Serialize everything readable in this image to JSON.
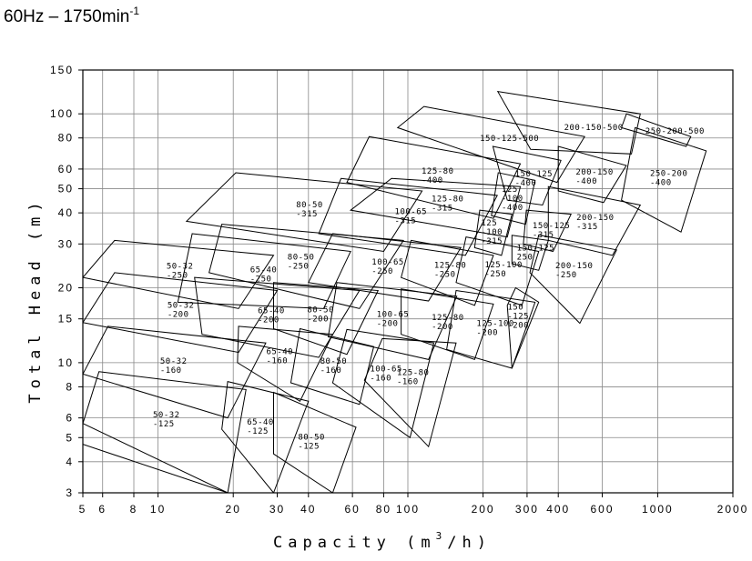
{
  "chart_data": {
    "type": "coverage",
    "title": "60Hz – 1750min",
    "title_sup": "-1",
    "xlabel": [
      "Capacity (m",
      "3",
      "/h)"
    ],
    "ylabel": "Total Head (m)",
    "log_x": true,
    "log_y": true,
    "grid": true,
    "xlim": [
      5,
      2000
    ],
    "ylim": [
      3,
      150
    ],
    "xticks": [
      5,
      6,
      8,
      10,
      20,
      30,
      40,
      60,
      80,
      100,
      200,
      300,
      400,
      600,
      1000,
      2000
    ],
    "yticks": [
      3,
      4,
      5,
      6,
      8,
      10,
      15,
      20,
      30,
      40,
      50,
      60,
      80,
      100,
      150
    ],
    "color": "#000000",
    "regions": [
      {
        "label": [
          "50-32",
          "-250"
        ],
        "points": [
          [
            6.7,
            31
          ],
          [
            29,
            27
          ],
          [
            21,
            16.5
          ],
          [
            5,
            22
          ]
        ]
      },
      {
        "label": [
          "50-32",
          "-200"
        ],
        "points": [
          [
            6.7,
            23
          ],
          [
            30,
            19.5
          ],
          [
            21,
            11
          ],
          [
            5,
            14.5
          ]
        ]
      },
      {
        "label": [
          "50-32",
          "-160"
        ],
        "points": [
          [
            6.3,
            14
          ],
          [
            27,
            12
          ],
          [
            19,
            6
          ],
          [
            5,
            9
          ]
        ]
      },
      {
        "label": [
          "50-32",
          "-125"
        ],
        "points": [
          [
            5.8,
            9.2
          ],
          [
            22.5,
            7.8
          ],
          [
            19,
            3
          ],
          [
            5,
            5.7
          ]
        ]
      },
      {
        "points": [
          [
            5,
            4.7
          ],
          [
            19,
            3
          ],
          [
            5,
            3
          ]
        ]
      },
      {
        "label": [
          "65-40",
          "-250"
        ],
        "points": [
          [
            13.7,
            33
          ],
          [
            59,
            28
          ],
          [
            46,
            16.5
          ],
          [
            12,
            17.5
          ]
        ]
      },
      {
        "label": [
          "65-40",
          "-200"
        ],
        "points": [
          [
            14,
            22
          ],
          [
            64,
            19.5
          ],
          [
            44,
            10.5
          ],
          [
            15,
            13
          ]
        ]
      },
      {
        "label": [
          "65-40",
          "-160"
        ],
        "points": [
          [
            21,
            14
          ],
          [
            50,
            13
          ],
          [
            37,
            7
          ],
          [
            20.8,
            10
          ]
        ]
      },
      {
        "label": [
          "65-40",
          "-125"
        ],
        "points": [
          [
            19,
            8.4
          ],
          [
            40,
            7
          ],
          [
            29,
            3
          ],
          [
            18,
            5.4
          ]
        ]
      },
      {
        "label": [
          "80-50",
          "-315"
        ],
        "points": [
          [
            20.5,
            58
          ],
          [
            114,
            49
          ],
          [
            80,
            28
          ],
          [
            13,
            37
          ]
        ]
      },
      {
        "label": [
          "80-50",
          "-250"
        ],
        "points": [
          [
            18,
            36
          ],
          [
            96,
            31
          ],
          [
            64,
            16.5
          ],
          [
            16,
            23
          ]
        ]
      },
      {
        "label": [
          "80-50",
          "-200"
        ],
        "points": [
          [
            29,
            21
          ],
          [
            76,
            19.5
          ],
          [
            57,
            10.8
          ],
          [
            29,
            13.7
          ]
        ]
      },
      {
        "label": [
          "80-50",
          "-160"
        ],
        "points": [
          [
            37,
            13.7
          ],
          [
            73,
            11.6
          ],
          [
            64,
            6.8
          ],
          [
            34,
            8.3
          ]
        ]
      },
      {
        "label": [
          "80-50",
          "-125"
        ],
        "points": [
          [
            29,
            7.6
          ],
          [
            62,
            5.5
          ],
          [
            50,
            3
          ],
          [
            29,
            4.3
          ]
        ]
      },
      {
        "label": [
          "100-65",
          "-315"
        ],
        "points": [
          [
            54,
            55
          ],
          [
            228,
            47
          ],
          [
            170,
            27
          ],
          [
            44,
            33
          ]
        ]
      },
      {
        "label": [
          "100-65",
          "-250"
        ],
        "points": [
          [
            50,
            33
          ],
          [
            163,
            29
          ],
          [
            121,
            17.7
          ],
          [
            40,
            21
          ]
        ]
      },
      {
        "label": [
          "100-65",
          "-200"
        ],
        "points": [
          [
            52,
            21
          ],
          [
            157,
            18.5
          ],
          [
            121,
            10.3
          ],
          [
            48,
            12.7
          ]
        ]
      },
      {
        "label": [
          "100-65",
          "-160"
        ],
        "points": [
          [
            57,
            13.6
          ],
          [
            127,
            12
          ],
          [
            102,
            5
          ],
          [
            50,
            8.3
          ]
        ]
      },
      {
        "label": [
          "125-80",
          "-400"
        ],
        "points": [
          [
            70,
            81
          ],
          [
            282,
            63
          ],
          [
            220,
            38
          ],
          [
            57,
            53
          ]
        ]
      },
      {
        "label": [
          "125-80",
          "-315"
        ],
        "points": [
          [
            86,
            55
          ],
          [
            282,
            51
          ],
          [
            250,
            32
          ],
          [
            59,
            41
          ]
        ]
      },
      {
        "label": [
          "125-80",
          "-250"
        ],
        "points": [
          [
            103,
            31
          ],
          [
            220,
            27
          ],
          [
            185,
            17
          ],
          [
            94,
            22
          ]
        ]
      },
      {
        "label": [
          "125-80",
          "-200"
        ],
        "points": [
          [
            94,
            19.8
          ],
          [
            220,
            17.2
          ],
          [
            185,
            10.3
          ],
          [
            94,
            13
          ]
        ]
      },
      {
        "label": [
          "125-80",
          "-160"
        ],
        "points": [
          [
            79,
            12.5
          ],
          [
            156,
            12
          ],
          [
            121,
            4.6
          ],
          [
            67,
            8.5
          ]
        ]
      },
      {
        "label": [
          "125-100",
          "-250"
        ],
        "points": [
          [
            171,
            32
          ],
          [
            334,
            28
          ],
          [
            286,
            17
          ],
          [
            156,
            21
          ]
        ]
      },
      {
        "label": [
          "125-100",
          "-200"
        ],
        "points": [
          [
            156,
            19.5
          ],
          [
            323,
            17.5
          ],
          [
            261,
            9.5
          ],
          [
            143,
            11.3
          ]
        ]
      },
      {
        "label": [
          "125",
          "-100",
          "-315"
        ],
        "points": [
          [
            194,
            41
          ],
          [
            261,
            39.5
          ],
          [
            237,
            27
          ],
          [
            185,
            29
          ]
        ]
      },
      {
        "label": [
          "125",
          "-100",
          "-400"
        ],
        "points": [
          [
            230,
            58
          ],
          [
            323,
            54
          ],
          [
            296,
            36
          ],
          [
            216,
            39
          ]
        ]
      },
      {
        "label": [
          "150-125-500"
        ],
        "points": [
          [
            116,
            107
          ],
          [
            510,
            81
          ],
          [
            395,
            53
          ],
          [
            91,
            88
          ]
        ]
      },
      {
        "label": [
          "150-125",
          "-400"
        ],
        "points": [
          [
            219,
            74
          ],
          [
            410,
            65
          ],
          [
            346,
            43
          ],
          [
            250,
            45
          ]
        ]
      },
      {
        "label": [
          "150-125",
          "-315"
        ],
        "points": [
          [
            298,
            41
          ],
          [
            450,
            39.5
          ],
          [
            381,
            28
          ],
          [
            290,
            30
          ]
        ]
      },
      {
        "label": [
          "150-125",
          "250"
        ],
        "points": [
          [
            261,
            32.5
          ],
          [
            365,
            31
          ],
          [
            334,
            23.5
          ],
          [
            261,
            25
          ]
        ]
      },
      {
        "label": [
          "150",
          "-125",
          "-200"
        ],
        "points": [
          [
            270,
            20
          ],
          [
            334,
            17.5
          ],
          [
            261,
            9.5
          ],
          [
            250,
            17
          ]
        ]
      },
      {
        "label": [
          "200-150-500"
        ],
        "points": [
          [
            229,
            123
          ],
          [
            852,
            100
          ],
          [
            785,
            69
          ],
          [
            310,
            72
          ]
        ]
      },
      {
        "label": [
          "200-150",
          "-400"
        ],
        "points": [
          [
            400,
            74
          ],
          [
            749,
            62
          ],
          [
            607,
            44
          ],
          [
            400,
            49
          ]
        ]
      },
      {
        "label": [
          "200-150",
          "-315"
        ],
        "points": [
          [
            365,
            51
          ],
          [
            852,
            43
          ],
          [
            659,
            27
          ],
          [
            365,
            31
          ]
        ]
      },
      {
        "label": [
          "200-150",
          "-250"
        ],
        "points": [
          [
            334,
            32.6
          ],
          [
            685,
            28.4
          ],
          [
            488,
            14.4
          ],
          [
            308,
            23
          ]
        ]
      },
      {
        "label": [
          "250-200-500"
        ],
        "points": [
          [
            750,
            100
          ],
          [
            1357,
            81
          ],
          [
            1300,
            74
          ],
          [
            716,
            88
          ]
        ]
      },
      {
        "label": [
          "250-200",
          "-400"
        ],
        "points": [
          [
            812,
            88
          ],
          [
            1564,
            71
          ],
          [
            1240,
            33.5
          ],
          [
            716,
            45
          ]
        ]
      }
    ]
  }
}
